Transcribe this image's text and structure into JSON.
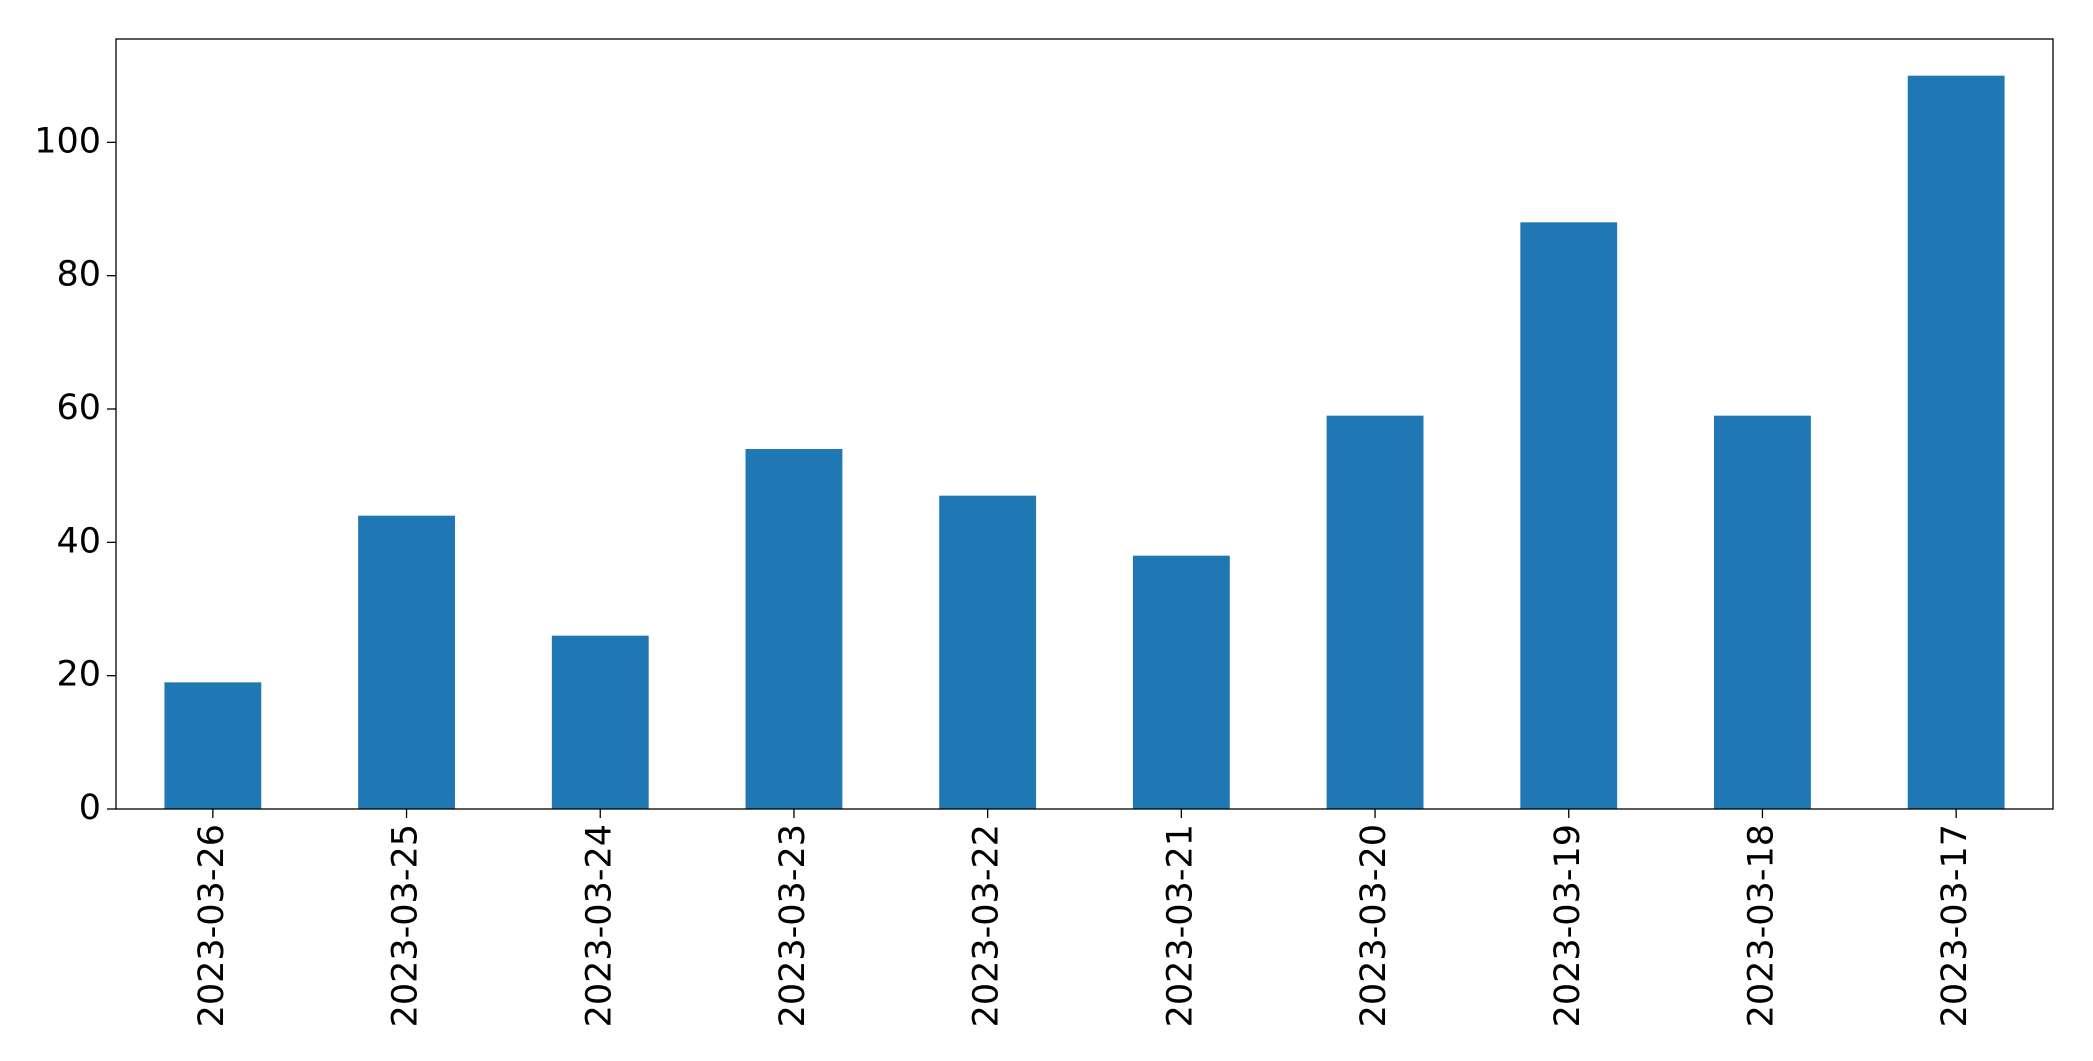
{
  "chart_data": {
    "type": "bar",
    "categories": [
      "2023-03-26",
      "2023-03-25",
      "2023-03-24",
      "2023-03-23",
      "2023-03-22",
      "2023-03-21",
      "2023-03-20",
      "2023-03-19",
      "2023-03-18",
      "2023-03-17"
    ],
    "values": [
      19,
      44,
      26,
      54,
      47,
      38,
      59,
      88,
      59,
      110
    ],
    "color": "#1f77b4",
    "ylim": [
      0,
      115.5
    ],
    "yticks": [
      0,
      20,
      40,
      60,
      80,
      100
    ],
    "grid": false
  }
}
